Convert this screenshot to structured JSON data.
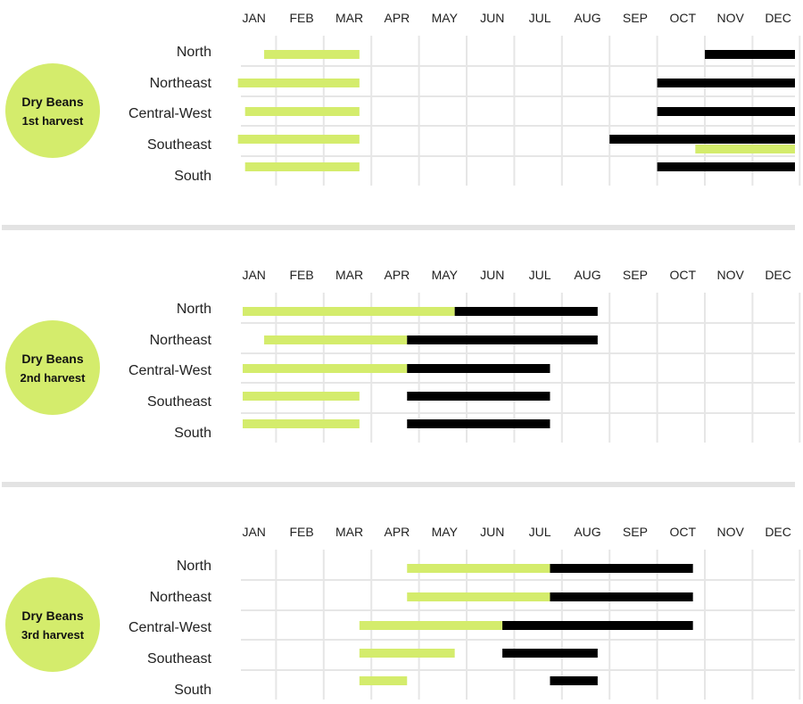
{
  "colors": {
    "planting": "#d4ec6c",
    "harvest": "#000000",
    "circle": "#d4ec6c",
    "grid": "#e6e6e6",
    "separator": "#e3e3e3"
  },
  "chart_data": [
    {
      "type": "gantt",
      "title": "Dry Beans",
      "subtitle": "1st harvest",
      "months": [
        "JAN",
        "FEB",
        "MAR",
        "APR",
        "MAY",
        "JUN",
        "JUL",
        "AUG",
        "SEP",
        "OCT",
        "NOV",
        "DEC"
      ],
      "x_unit": "month (0 = start of JAN, 12 = end of DEC)",
      "regions": [
        "North",
        "Northeast",
        "Central-West",
        "Southeast",
        "South"
      ],
      "series": [
        {
          "kind": "planting",
          "bars": [
            {
              "region": "North",
              "start": 0.75,
              "end": 2.75
            },
            {
              "region": "Northeast",
              "start": 0.2,
              "end": 2.75
            },
            {
              "region": "Central-West",
              "start": 0.35,
              "end": 2.75
            },
            {
              "region": "Southeast",
              "start": 0.2,
              "end": 2.75
            },
            {
              "region": "South",
              "start": 0.35,
              "end": 2.75
            },
            {
              "region": "Southeast",
              "start": 9.8,
              "end": 12.0,
              "lane": "lower"
            }
          ]
        },
        {
          "kind": "harvest",
          "bars": [
            {
              "region": "North",
              "start": 10.0,
              "end": 12.0
            },
            {
              "region": "Northeast",
              "start": 9.0,
              "end": 12.0
            },
            {
              "region": "Central-West",
              "start": 9.0,
              "end": 12.0
            },
            {
              "region": "Southeast",
              "start": 8.0,
              "end": 12.0
            },
            {
              "region": "South",
              "start": 9.0,
              "end": 12.0
            }
          ]
        }
      ]
    },
    {
      "type": "gantt",
      "title": "Dry Beans",
      "subtitle": "2nd harvest",
      "months": [
        "JAN",
        "FEB",
        "MAR",
        "APR",
        "MAY",
        "JUN",
        "JUL",
        "AUG",
        "SEP",
        "OCT",
        "NOV",
        "DEC"
      ],
      "x_unit": "month (0 = start of JAN, 12 = end of DEC)",
      "regions": [
        "North",
        "Northeast",
        "Central-West",
        "Southeast",
        "South"
      ],
      "series": [
        {
          "kind": "planting",
          "bars": [
            {
              "region": "North",
              "start": 0.3,
              "end": 4.75
            },
            {
              "region": "Northeast",
              "start": 0.75,
              "end": 3.75
            },
            {
              "region": "Central-West",
              "start": 0.3,
              "end": 3.75
            },
            {
              "region": "Southeast",
              "start": 0.3,
              "end": 2.75
            },
            {
              "region": "South",
              "start": 0.3,
              "end": 2.75
            }
          ]
        },
        {
          "kind": "harvest",
          "bars": [
            {
              "region": "North",
              "start": 4.75,
              "end": 7.75
            },
            {
              "region": "Northeast",
              "start": 3.75,
              "end": 7.75
            },
            {
              "region": "Central-West",
              "start": 3.75,
              "end": 6.75
            },
            {
              "region": "Southeast",
              "start": 3.75,
              "end": 6.75
            },
            {
              "region": "South",
              "start": 3.75,
              "end": 6.75
            }
          ]
        }
      ]
    },
    {
      "type": "gantt",
      "title": "Dry Beans",
      "subtitle": "3rd harvest",
      "months": [
        "JAN",
        "FEB",
        "MAR",
        "APR",
        "MAY",
        "JUN",
        "JUL",
        "AUG",
        "SEP",
        "OCT",
        "NOV",
        "DEC"
      ],
      "x_unit": "month (0 = start of JAN, 12 = end of DEC)",
      "regions": [
        "North",
        "Northeast",
        "Central-West",
        "Southeast",
        "South"
      ],
      "series": [
        {
          "kind": "planting",
          "bars": [
            {
              "region": "North",
              "start": 3.75,
              "end": 6.75
            },
            {
              "region": "Northeast",
              "start": 3.75,
              "end": 6.75
            },
            {
              "region": "Central-West",
              "start": 2.75,
              "end": 5.75
            },
            {
              "region": "Southeast",
              "start": 2.75,
              "end": 4.75
            },
            {
              "region": "South",
              "start": 2.75,
              "end": 3.75
            }
          ]
        },
        {
          "kind": "harvest",
          "bars": [
            {
              "region": "North",
              "start": 6.75,
              "end": 9.75
            },
            {
              "region": "Northeast",
              "start": 6.75,
              "end": 9.75
            },
            {
              "region": "Central-West",
              "start": 5.75,
              "end": 9.75
            },
            {
              "region": "Southeast",
              "start": 5.75,
              "end": 7.75
            },
            {
              "region": "South",
              "start": 6.75,
              "end": 7.75
            }
          ]
        }
      ]
    }
  ]
}
